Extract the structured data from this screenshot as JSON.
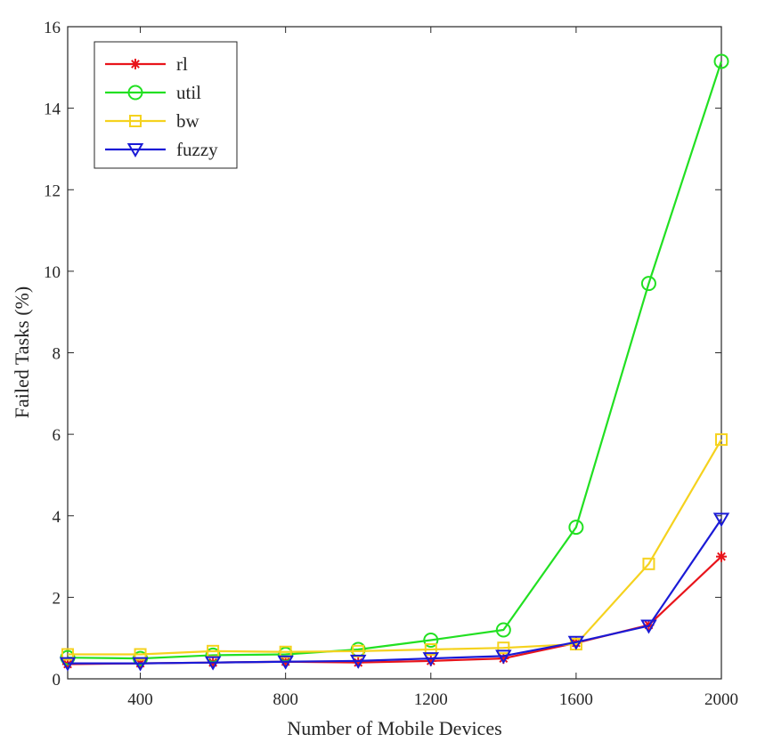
{
  "chart_data": {
    "type": "line",
    "title": "",
    "xlabel": "Number of Mobile Devices",
    "ylabel": "Failed Tasks (%)",
    "xlim": [
      200,
      2000
    ],
    "ylim": [
      0,
      16
    ],
    "xticks": [
      400,
      800,
      1200,
      1600,
      2000
    ],
    "yticks": [
      0,
      2,
      4,
      6,
      8,
      10,
      12,
      14,
      16
    ],
    "grid": false,
    "legend_position": "top-left",
    "x": [
      200,
      400,
      600,
      800,
      1000,
      1200,
      1400,
      1600,
      1800,
      2000
    ],
    "series": [
      {
        "name": "rl",
        "color": "#e8141b",
        "marker": "asterisk",
        "values": [
          0.36,
          0.38,
          0.4,
          0.42,
          0.4,
          0.44,
          0.5,
          0.88,
          1.32,
          3.0
        ]
      },
      {
        "name": "util",
        "color": "#22e022",
        "marker": "circle",
        "values": [
          0.52,
          0.5,
          0.58,
          0.6,
          0.72,
          0.95,
          1.2,
          3.72,
          9.7,
          15.15
        ]
      },
      {
        "name": "bw",
        "color": "#f5d21e",
        "marker": "square",
        "values": [
          0.6,
          0.6,
          0.68,
          0.66,
          0.68,
          0.72,
          0.76,
          0.85,
          2.82,
          5.87
        ]
      },
      {
        "name": "fuzzy",
        "color": "#1a1ad6",
        "marker": "triangle-down",
        "values": [
          0.38,
          0.38,
          0.4,
          0.42,
          0.44,
          0.5,
          0.56,
          0.9,
          1.3,
          3.92
        ]
      }
    ]
  }
}
